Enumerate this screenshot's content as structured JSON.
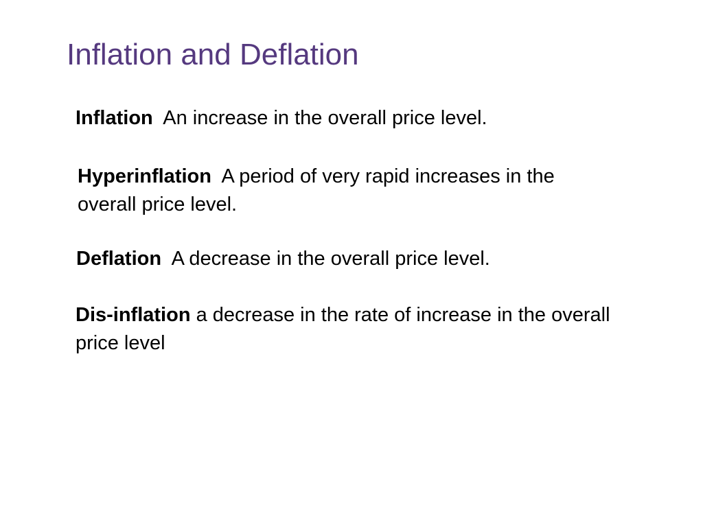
{
  "colors": {
    "title": "#55397f",
    "text": "#000000",
    "background": "#ffffff"
  },
  "slide": {
    "title": "Inflation and Deflation",
    "definitions": [
      {
        "term": "Inflation",
        "separator": "  ",
        "text": "An increase in the overall price level."
      },
      {
        "term": "Hyperinflation",
        "separator": "  ",
        "text": "A period of very rapid increases in the overall price level."
      },
      {
        "term": "Deflation",
        "separator": "  ",
        "text": "A decrease in the overall price level."
      },
      {
        "term": "Dis-inflation",
        "separator": " ",
        "text": "a decrease in the rate of increase in the overall price level"
      }
    ]
  }
}
